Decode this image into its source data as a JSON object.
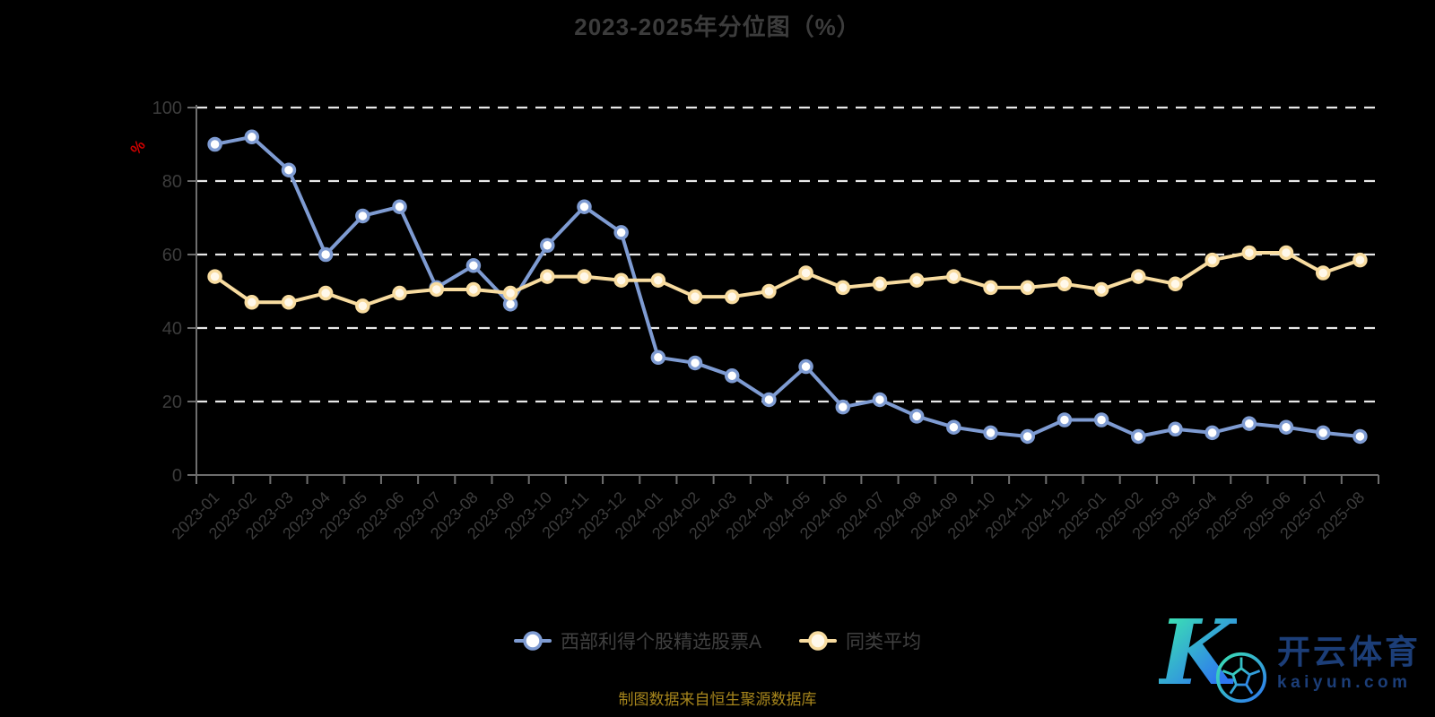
{
  "title": "2023-2025年分位图（%）",
  "footer_note": "制图数据来自恒生聚源数据库",
  "logo": {
    "monogram": "K",
    "brand_cn": "开云体育",
    "brand_domain": "kaiyun.com"
  },
  "colors": {
    "background": "#000000",
    "title_text": "#3C3C3C",
    "axis_label": "#3C3C3C",
    "axis_line": "#6E6E6E",
    "gridline": "#E8E8E8",
    "legend_text": "#404040",
    "unit_label_red": "#CC0000",
    "footer_gold": "#A6851C",
    "fund_blue": "#7E9BD2",
    "peer_yellow": "#F8DCA0",
    "logo_navy": "#1C3E78",
    "logo_gradient_start": "#3BE3B1",
    "logo_gradient_end": "#2E77F0"
  },
  "chart_data": {
    "type": "line",
    "title": "2023-2025年分位图（%）",
    "xlabel": "",
    "ylabel": "%",
    "ylim": [
      0,
      100
    ],
    "yticks": [
      0,
      20,
      40,
      60,
      80,
      100
    ],
    "gridlines": [
      20,
      40,
      60,
      80,
      100
    ],
    "grid": true,
    "legend_position": "bottom",
    "x_label_rotation_deg": 45,
    "categories": [
      "2023-01",
      "2023-02",
      "2023-03",
      "2023-04",
      "2023-05",
      "2023-06",
      "2023-07",
      "2023-08",
      "2023-09",
      "2023-10",
      "2023-11",
      "2023-12",
      "2024-01",
      "2024-02",
      "2024-03",
      "2024-04",
      "2024-05",
      "2024-06",
      "2024-07",
      "2024-08",
      "2024-09",
      "2024-10",
      "2024-11",
      "2024-12",
      "2025-01",
      "2025-02",
      "2025-03",
      "2025-04",
      "2025-05",
      "2025-06",
      "2025-07",
      "2025-08"
    ],
    "series": [
      {
        "name": "西部利得个股精选股票A",
        "color": "#7E9BD2",
        "marker_fill": "#FFFFFF",
        "values": [
          90,
          92,
          83,
          60,
          70.5,
          73,
          51,
          57,
          46.5,
          62.5,
          73,
          66,
          32,
          30.5,
          27,
          20.5,
          29.5,
          18.5,
          20.5,
          16,
          13,
          11.5,
          10.5,
          15,
          15,
          10.5,
          12.5,
          11.5,
          14,
          13,
          11.5,
          10.5
        ]
      },
      {
        "name": "同类平均",
        "color": "#F8DCA0",
        "marker_fill": "#FFF8EA",
        "values": [
          54,
          47,
          47,
          49.5,
          46,
          49.5,
          50.5,
          50.5,
          49.5,
          54,
          54,
          53,
          53,
          48.5,
          48.5,
          50,
          55,
          51,
          52,
          53,
          54,
          51,
          51,
          52,
          50.5,
          54,
          52,
          58.5,
          60.5,
          60.5,
          55,
          58.5
        ]
      }
    ]
  }
}
